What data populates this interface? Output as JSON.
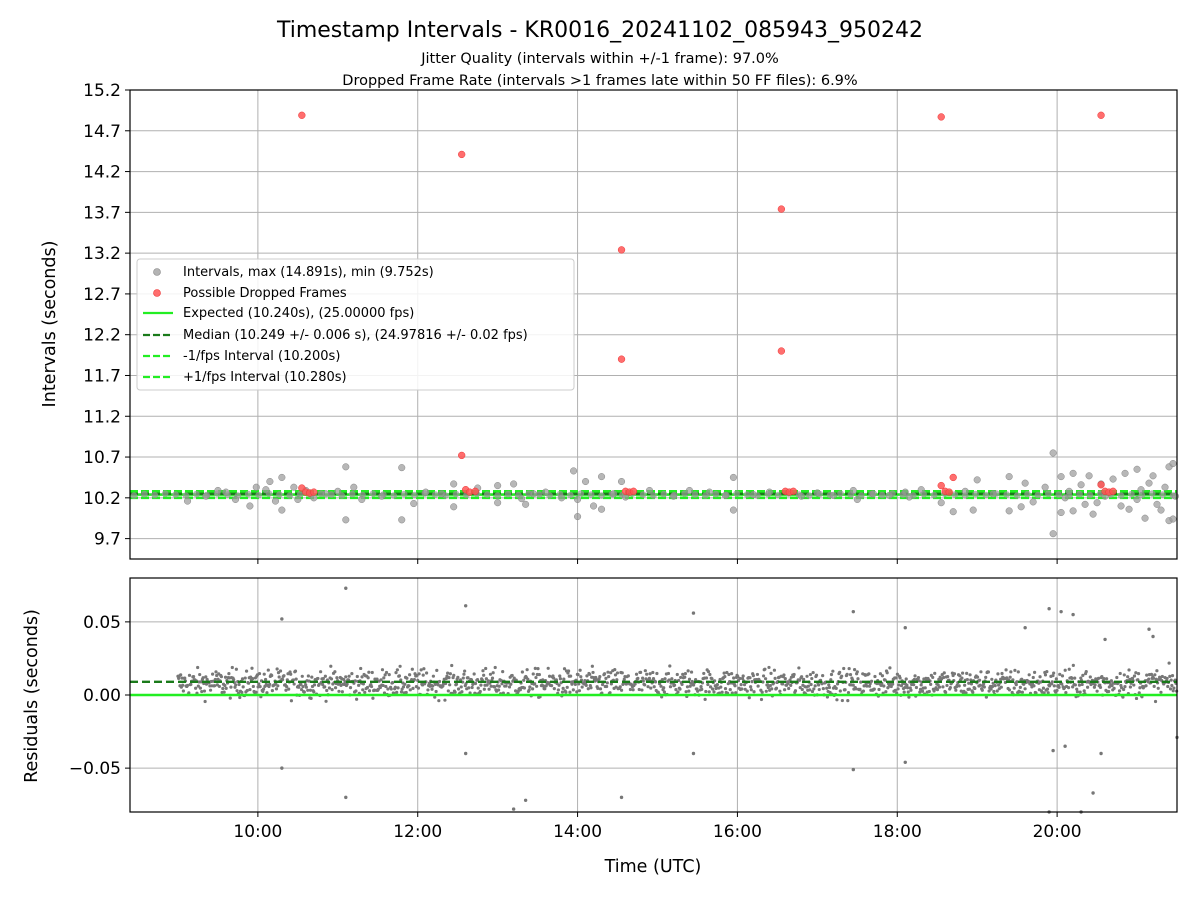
{
  "chart_data": [
    {
      "type": "scatter",
      "title": "Timestamp Intervals - KR0016_20241102_085943_950242",
      "subtitles": [
        "Jitter Quality (intervals within +/-1 frame): 97.0%",
        "Dropped Frame Rate (intervals >1 frames late within 50 FF files): 6.9%"
      ],
      "ylabel": "Intervals (seconds)",
      "xlim": [
        8.4,
        21.5
      ],
      "ylim": [
        9.45,
        15.2
      ],
      "xticks": [
        10,
        12,
        14,
        16,
        18,
        20
      ],
      "yticks": [
        9.7,
        10.2,
        10.7,
        11.2,
        11.7,
        12.2,
        12.7,
        13.2,
        13.7,
        14.2,
        14.7,
        15.2
      ],
      "ytick_labels": [
        "9.7",
        "10.2",
        "10.7",
        "11.2",
        "11.7",
        "12.2",
        "12.7",
        "13.2",
        "13.7",
        "14.2",
        "14.7",
        "15.2"
      ],
      "grid": true,
      "legend": {
        "placement": "center-left",
        "entries": [
          {
            "label": "Intervals, max (14.891s), min (9.752s)",
            "marker": "circle",
            "color": "#999999"
          },
          {
            "label": "Possible Dropped Frames",
            "marker": "circle",
            "color": "#ff5555"
          },
          {
            "label": "Expected (10.240s), (25.00000 fps)",
            "marker": "line",
            "color": "#22ee22",
            "dash": "solid"
          },
          {
            "label": "Median (10.249 +/- 0.006 s), (24.97816 +/- 0.02 fps)",
            "marker": "line",
            "color": "#1a7a1a",
            "dash": "dashed"
          },
          {
            "label": "-1/fps Interval (10.200s)",
            "marker": "line",
            "color": "#22ee22",
            "dash": "dashed"
          },
          {
            "label": "+1/fps Interval (10.280s)",
            "marker": "line",
            "color": "#22ee22",
            "dash": "dashed"
          }
        ]
      },
      "series": [
        {
          "name": "Intervals, max (14.891s), min (9.752s)",
          "color": "#999999",
          "points": [
            [
              9.12,
              10.16
            ],
            [
              9.35,
              10.22
            ],
            [
              9.5,
              10.29
            ],
            [
              9.6,
              10.27
            ],
            [
              9.72,
              10.18
            ],
            [
              9.9,
              10.1
            ],
            [
              9.98,
              10.33
            ],
            [
              10.1,
              10.3
            ],
            [
              10.15,
              10.4
            ],
            [
              10.22,
              10.16
            ],
            [
              10.3,
              10.45
            ],
            [
              10.3,
              10.05
            ],
            [
              10.45,
              10.33
            ],
            [
              10.5,
              10.18
            ],
            [
              10.6,
              10.29
            ],
            [
              10.7,
              10.2
            ],
            [
              10.85,
              10.25
            ],
            [
              11.0,
              10.28
            ],
            [
              11.1,
              10.58
            ],
            [
              11.1,
              9.93
            ],
            [
              11.2,
              10.33
            ],
            [
              11.3,
              10.18
            ],
            [
              11.55,
              10.22
            ],
            [
              11.8,
              10.57
            ],
            [
              11.8,
              9.93
            ],
            [
              11.95,
              10.13
            ],
            [
              12.1,
              10.27
            ],
            [
              12.3,
              10.25
            ],
            [
              12.45,
              10.37
            ],
            [
              12.45,
              10.09
            ],
            [
              12.75,
              10.32
            ],
            [
              13.0,
              10.35
            ],
            [
              13.0,
              10.14
            ],
            [
              13.2,
              10.37
            ],
            [
              13.3,
              10.19
            ],
            [
              13.35,
              10.12
            ],
            [
              13.45,
              10.25
            ],
            [
              13.6,
              10.27
            ],
            [
              13.8,
              10.2
            ],
            [
              13.95,
              10.53
            ],
            [
              14.0,
              10.18
            ],
            [
              14.0,
              9.97
            ],
            [
              14.1,
              10.4
            ],
            [
              14.2,
              10.1
            ],
            [
              14.3,
              10.46
            ],
            [
              14.3,
              10.06
            ],
            [
              14.45,
              10.25
            ],
            [
              14.55,
              10.4
            ],
            [
              14.6,
              10.21
            ],
            [
              14.9,
              10.29
            ],
            [
              15.2,
              10.22
            ],
            [
              15.4,
              10.29
            ],
            [
              15.65,
              10.27
            ],
            [
              15.85,
              10.23
            ],
            [
              15.95,
              10.45
            ],
            [
              15.95,
              10.05
            ],
            [
              16.2,
              10.24
            ],
            [
              16.4,
              10.27
            ],
            [
              16.8,
              10.22
            ],
            [
              17.0,
              10.26
            ],
            [
              17.2,
              10.23
            ],
            [
              17.45,
              10.29
            ],
            [
              17.5,
              10.18
            ],
            [
              17.7,
              10.25
            ],
            [
              17.9,
              10.23
            ],
            [
              18.1,
              10.27
            ],
            [
              18.15,
              10.21
            ],
            [
              18.3,
              10.3
            ],
            [
              18.55,
              10.14
            ],
            [
              18.7,
              10.03
            ],
            [
              18.85,
              10.28
            ],
            [
              18.95,
              10.05
            ],
            [
              19.0,
              10.42
            ],
            [
              19.2,
              10.25
            ],
            [
              19.4,
              10.46
            ],
            [
              19.4,
              10.04
            ],
            [
              19.55,
              10.09
            ],
            [
              19.6,
              10.38
            ],
            [
              19.7,
              10.15
            ],
            [
              19.85,
              10.33
            ],
            [
              19.95,
              10.75
            ],
            [
              19.95,
              9.76
            ],
            [
              20.05,
              10.46
            ],
            [
              20.05,
              10.02
            ],
            [
              20.1,
              10.2
            ],
            [
              20.15,
              10.28
            ],
            [
              20.2,
              10.5
            ],
            [
              20.2,
              10.04
            ],
            [
              20.3,
              10.36
            ],
            [
              20.35,
              10.12
            ],
            [
              20.4,
              10.47
            ],
            [
              20.45,
              10.0
            ],
            [
              20.5,
              10.14
            ],
            [
              20.55,
              10.37
            ],
            [
              20.6,
              10.22
            ],
            [
              20.7,
              10.43
            ],
            [
              20.8,
              10.1
            ],
            [
              20.85,
              10.5
            ],
            [
              20.9,
              10.06
            ],
            [
              21.0,
              10.55
            ],
            [
              21.0,
              10.18
            ],
            [
              21.05,
              10.3
            ],
            [
              21.1,
              9.95
            ],
            [
              21.15,
              10.38
            ],
            [
              21.2,
              10.47
            ],
            [
              21.25,
              10.12
            ],
            [
              21.3,
              10.05
            ],
            [
              21.35,
              10.33
            ],
            [
              21.4,
              10.58
            ],
            [
              21.4,
              9.92
            ],
            [
              21.45,
              10.62
            ],
            [
              21.45,
              9.94
            ],
            [
              21.48,
              10.22
            ]
          ]
        },
        {
          "name": "Possible Dropped Frames",
          "color": "#ff5555",
          "points": [
            [
              10.55,
              14.89
            ],
            [
              10.55,
              10.32
            ],
            [
              10.6,
              10.27
            ],
            [
              10.65,
              10.26
            ],
            [
              10.7,
              10.27
            ],
            [
              12.55,
              14.41
            ],
            [
              12.55,
              10.72
            ],
            [
              12.6,
              10.3
            ],
            [
              12.65,
              10.27
            ],
            [
              12.72,
              10.28
            ],
            [
              14.55,
              13.24
            ],
            [
              14.55,
              11.9
            ],
            [
              14.6,
              10.28
            ],
            [
              14.65,
              10.27
            ],
            [
              14.7,
              10.28
            ],
            [
              16.55,
              13.74
            ],
            [
              16.55,
              12.0
            ],
            [
              16.6,
              10.28
            ],
            [
              16.65,
              10.27
            ],
            [
              16.7,
              10.28
            ],
            [
              18.55,
              14.87
            ],
            [
              18.55,
              10.35
            ],
            [
              18.6,
              10.28
            ],
            [
              18.65,
              10.27
            ],
            [
              18.7,
              10.45
            ],
            [
              20.55,
              14.89
            ],
            [
              20.55,
              10.36
            ],
            [
              20.6,
              10.28
            ],
            [
              20.65,
              10.27
            ],
            [
              20.7,
              10.28
            ]
          ]
        }
      ],
      "lines": [
        {
          "name": "Expected (10.240s), (25.00000 fps)",
          "y": 10.24,
          "color": "#22ee22",
          "dash": "solid"
        },
        {
          "name": "Median (10.249 +/- 0.006 s), (24.97816 +/- 0.02 fps)",
          "y": 10.249,
          "color": "#1a7a1a",
          "dash": "dashed"
        },
        {
          "name": "-1/fps Interval (10.200s)",
          "y": 10.2,
          "color": "#22ee22",
          "dash": "dashed"
        },
        {
          "name": "+1/fps Interval (10.280s)",
          "y": 10.28,
          "color": "#22ee22",
          "dash": "dashed"
        }
      ]
    },
    {
      "type": "scatter",
      "xlabel": "Time (UTC)",
      "ylabel": "Residuals (seconds)",
      "xlim": [
        8.4,
        21.5
      ],
      "ylim": [
        -0.08,
        0.08
      ],
      "xticks": [
        10,
        12,
        14,
        16,
        18,
        20
      ],
      "xtick_labels": [
        "10:00",
        "12:00",
        "14:00",
        "16:00",
        "18:00",
        "20:00"
      ],
      "yticks": [
        -0.05,
        0.0,
        0.05
      ],
      "ytick_labels": [
        "−0.05",
        "0.00",
        "0.05"
      ],
      "grid": true,
      "series": [
        {
          "name": "Residuals",
          "color": "#777777",
          "x_range": [
            9.0,
            21.5
          ],
          "center": 0.008,
          "spread": 0.008,
          "outliers": [
            [
              10.3,
              0.052
            ],
            [
              10.3,
              -0.05
            ],
            [
              11.1,
              0.073
            ],
            [
              11.1,
              -0.07
            ],
            [
              12.6,
              0.061
            ],
            [
              12.6,
              -0.04
            ],
            [
              13.2,
              -0.078
            ],
            [
              13.35,
              -0.072
            ],
            [
              14.55,
              -0.07
            ],
            [
              15.45,
              0.056
            ],
            [
              15.45,
              -0.04
            ],
            [
              17.45,
              0.057
            ],
            [
              17.45,
              -0.051
            ],
            [
              18.1,
              0.046
            ],
            [
              18.1,
              -0.046
            ],
            [
              19.6,
              0.046
            ],
            [
              19.9,
              0.059
            ],
            [
              19.9,
              -0.08
            ],
            [
              19.95,
              -0.038
            ],
            [
              20.05,
              0.057
            ],
            [
              20.1,
              -0.035
            ],
            [
              20.2,
              0.055
            ],
            [
              20.3,
              -0.08
            ],
            [
              20.45,
              -0.067
            ],
            [
              20.55,
              -0.04
            ],
            [
              20.6,
              0.038
            ],
            [
              21.15,
              0.045
            ],
            [
              21.2,
              0.04
            ],
            [
              21.5,
              -0.029
            ]
          ]
        }
      ],
      "lines": [
        {
          "name": "Expected",
          "y": 0.0,
          "color": "#22ee22",
          "dash": "solid"
        },
        {
          "name": "Median",
          "y": 0.009,
          "color": "#1a7a1a",
          "dash": "dashed"
        }
      ]
    }
  ]
}
